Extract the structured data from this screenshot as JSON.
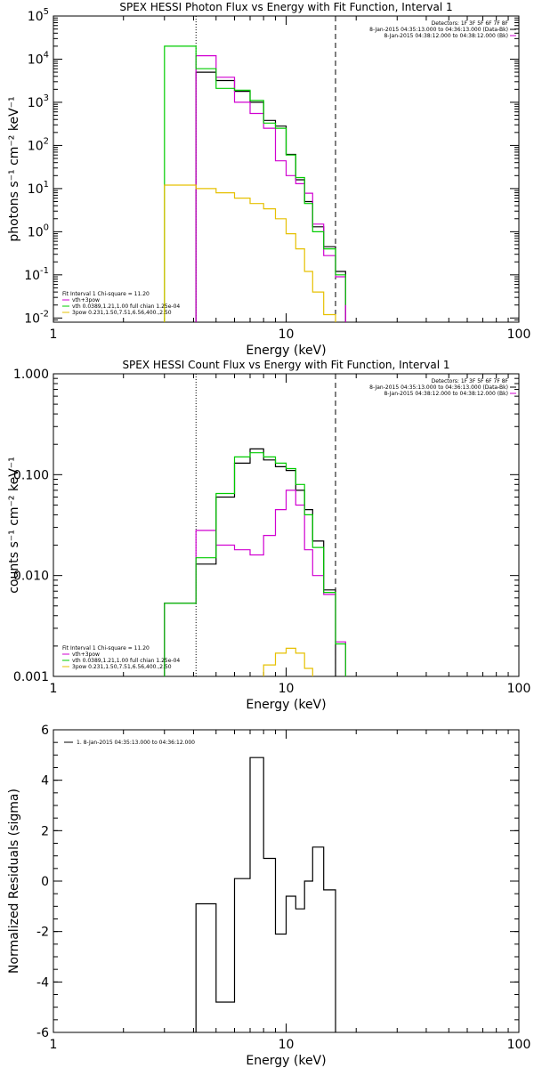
{
  "colors": {
    "data": "#000000",
    "vth_plus_3pow": "#d100d1",
    "vth": "#00cc00",
    "3pow": "#e6c000",
    "background": "#ffffff"
  },
  "chart_data": [
    {
      "type": "line",
      "title": "SPEX HESSI Photon Flux vs Energy with Fit Function, Interval 1",
      "xlabel": "Energy (keV)",
      "ylabel": "photons s⁻¹ cm⁻² keV⁻¹",
      "x_scale": "log",
      "y_scale": "log",
      "xlim": [
        1,
        100
      ],
      "ylim": [
        0.008,
        100000
      ],
      "x_ticks": [
        {
          "v": 1,
          "label": "1"
        },
        {
          "v": 10,
          "label": "10"
        },
        {
          "v": 100,
          "label": "100"
        }
      ],
      "y_ticks": [
        {
          "v": 0.01,
          "base": "10",
          "exp": "-2"
        },
        {
          "v": 0.1,
          "base": "10",
          "exp": "-1"
        },
        {
          "v": 1,
          "base": "10",
          "exp": "0"
        },
        {
          "v": 10,
          "base": "10",
          "exp": "1"
        },
        {
          "v": 100,
          "base": "10",
          "exp": "2"
        },
        {
          "v": 1000,
          "base": "10",
          "exp": "3"
        },
        {
          "v": 10000,
          "base": "10",
          "exp": "4"
        },
        {
          "v": 100000,
          "base": "10",
          "exp": "5"
        }
      ],
      "vlines": [
        {
          "x": 4.1,
          "style": "dotted"
        },
        {
          "x": 16.3,
          "style": "dashed"
        }
      ],
      "legend_top": {
        "lines": [
          "Detectors: 1F 3F 5F 6F 7F 8F",
          "8-Jan-2015 04:35:13.000 to 04:36:13.000 (Data-Bk)",
          "8-Jan-2015 04:38:12.000 to 04:38:12.000 (Bk)"
        ],
        "line_colors": [
          "",
          "#000000",
          "#d100d1"
        ]
      },
      "legend_bottom": {
        "header": "Fit Interval 1   Chi-square = 11.20",
        "entries": [
          {
            "label": "vth+3pow",
            "color": "#d100d1"
          },
          {
            "label": "vth 0.0389,1.21,1.00  full chian 1.25e-04",
            "color": "#00cc00"
          },
          {
            "label": "3pow 0.231,1.50,7.51,6.56,400.,2.50",
            "color": "#e6c000"
          }
        ]
      },
      "series": [
        {
          "color": "#000000",
          "edges": [
            3.0,
            4.1,
            5.0,
            6.0,
            7.0,
            8.0,
            9.0,
            10.0,
            11.0,
            12.0,
            13.0,
            14.5,
            16.3,
            18.0
          ],
          "values": [
            null,
            5000,
            3200,
            1800,
            1000,
            380,
            280,
            62,
            16,
            5.0,
            1.3,
            0.45,
            0.12
          ]
        },
        {
          "color": "#d100d1",
          "edges": [
            3.0,
            4.1,
            5.0,
            6.0,
            7.0,
            8.0,
            9.0,
            10.0,
            11.0,
            12.0,
            13.0,
            14.5,
            16.3,
            18.0
          ],
          "values": [
            null,
            12000,
            3800,
            1000,
            550,
            250,
            44,
            20,
            13,
            7.8,
            1.5,
            0.28,
            0.09,
            0.008
          ]
        },
        {
          "color": "#00cc00",
          "edges": [
            3.0,
            4.1,
            5.0,
            6.0,
            7.0,
            8.0,
            9.0,
            10.0,
            11.0,
            12.0,
            13.0,
            14.5,
            16.3,
            18.0
          ],
          "values": [
            20000,
            6000,
            2100,
            1900,
            1100,
            330,
            250,
            60,
            18,
            4.5,
            1.0,
            0.4,
            0.1,
            0.02
          ]
        },
        {
          "color": "#e6c000",
          "edges": [
            3.0,
            4.1,
            5.0,
            6.0,
            7.0,
            8.0,
            9.0,
            10.0,
            11.0,
            12.0,
            13.0,
            14.5,
            16.3
          ],
          "values": [
            12,
            10,
            8,
            6,
            4.5,
            3.4,
            2.0,
            0.9,
            0.4,
            0.12,
            0.04,
            0.012
          ]
        }
      ]
    },
    {
      "type": "line",
      "title": "SPEX HESSI Count Flux vs Energy with Fit Function, Interval 1",
      "xlabel": "Energy (keV)",
      "ylabel": "counts s⁻¹ cm⁻² keV⁻¹",
      "x_scale": "log",
      "y_scale": "log",
      "xlim": [
        1,
        100
      ],
      "ylim": [
        0.001,
        1.0
      ],
      "x_ticks": [
        {
          "v": 1,
          "label": "1"
        },
        {
          "v": 10,
          "label": "10"
        },
        {
          "v": 100,
          "label": "100"
        }
      ],
      "y_ticks": [
        {
          "v": 0.001,
          "label": "0.001"
        },
        {
          "v": 0.01,
          "label": "0.010"
        },
        {
          "v": 0.1,
          "label": "0.100"
        },
        {
          "v": 1.0,
          "label": "1.000"
        }
      ],
      "vlines": [
        {
          "x": 4.1,
          "style": "dotted"
        },
        {
          "x": 16.3,
          "style": "dashed"
        }
      ],
      "legend_top": {
        "lines": [
          "Detectors: 1F 3F 5F 6F 7F 8F",
          "8-Jan-2015 04:35:13.000 to 04:36:13.000 (Data-Bk)",
          "8-Jan-2015 04:38:12.000 to 04:38:12.000 (Bk)"
        ],
        "line_colors": [
          "",
          "#000000",
          "#d100d1"
        ]
      },
      "legend_bottom": {
        "header": "Fit Interval 1   Chi-square = 11.20",
        "entries": [
          {
            "label": "vth+3pow",
            "color": "#d100d1"
          },
          {
            "label": "vth 0.0389,1.21,1.00  full chian 1.25e-04",
            "color": "#00cc00"
          },
          {
            "label": "3pow 0.231,1.50,7.51,6.56,400.,2.50",
            "color": "#e6c000"
          }
        ]
      },
      "series": [
        {
          "color": "#000000",
          "edges": [
            3.0,
            4.1,
            5.0,
            6.0,
            7.0,
            8.0,
            9.0,
            10.0,
            11.0,
            12.0,
            13.0,
            14.5,
            16.3
          ],
          "values": [
            0.0053,
            0.013,
            0.06,
            0.13,
            0.18,
            0.14,
            0.12,
            0.11,
            0.07,
            0.045,
            0.022,
            0.0072
          ]
        },
        {
          "color": "#d100d1",
          "edges": [
            3.0,
            4.1,
            5.0,
            6.0,
            7.0,
            8.0,
            9.0,
            10.0,
            11.0,
            12.0,
            13.0,
            14.5,
            16.3,
            18.0
          ],
          "values": [
            0.0053,
            0.028,
            0.02,
            0.018,
            0.016,
            0.025,
            0.045,
            0.07,
            0.05,
            0.018,
            0.01,
            0.0065,
            0.0022
          ]
        },
        {
          "color": "#00cc00",
          "edges": [
            3.0,
            4.1,
            5.0,
            6.0,
            7.0,
            8.0,
            9.0,
            10.0,
            11.0,
            12.0,
            13.0,
            14.5,
            16.3,
            18.0
          ],
          "values": [
            0.0053,
            0.015,
            0.065,
            0.15,
            0.165,
            0.15,
            0.13,
            0.115,
            0.08,
            0.04,
            0.019,
            0.0068,
            0.0021
          ]
        },
        {
          "color": "#e6c000",
          "edges": [
            8.0,
            9.0,
            10.0,
            11.0,
            12.0,
            13.0
          ],
          "values": [
            0.0013,
            0.0017,
            0.0019,
            0.0017,
            0.0012
          ]
        }
      ]
    },
    {
      "type": "line",
      "title": "",
      "xlabel": "Energy (keV)",
      "ylabel": "Normalized Residuals (sigma)",
      "x_scale": "log",
      "y_scale": "linear",
      "xlim": [
        1,
        100
      ],
      "ylim": [
        -6,
        6
      ],
      "x_ticks": [
        {
          "v": 1,
          "label": "1"
        },
        {
          "v": 10,
          "label": "10"
        },
        {
          "v": 100,
          "label": "100"
        }
      ],
      "y_ticks": [
        {
          "v": -6,
          "label": "-6"
        },
        {
          "v": -4,
          "label": "-4"
        },
        {
          "v": -2,
          "label": "-2"
        },
        {
          "v": 0,
          "label": "0"
        },
        {
          "v": 2,
          "label": "2"
        },
        {
          "v": 4,
          "label": "4"
        },
        {
          "v": 6,
          "label": "6"
        }
      ],
      "vlines": [],
      "legend_top": {
        "lines": [
          "1.  8-Jan-2015 04:35:13.000 to 04:36:12.000"
        ],
        "line_colors": [
          "#000000"
        ]
      },
      "series": [
        {
          "color": "#000000",
          "edges": [
            4.1,
            5.0,
            6.0,
            7.0,
            8.0,
            9.0,
            10.0,
            11.0,
            12.0,
            13.0,
            14.5,
            16.3
          ],
          "values": [
            -0.9,
            -4.8,
            0.1,
            4.9,
            0.9,
            -2.1,
            -0.6,
            -1.1,
            0.0,
            1.35,
            -0.35
          ],
          "drop_to_bottom_at_ends": true
        }
      ]
    }
  ]
}
